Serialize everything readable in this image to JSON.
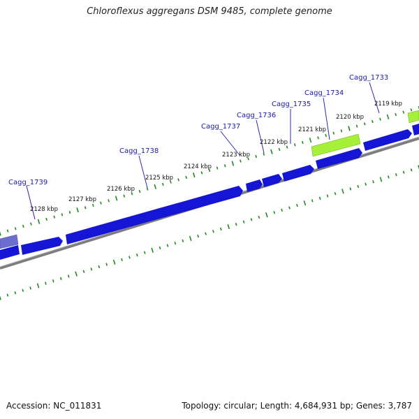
{
  "title": "Chloroflexus aggregans DSM 9485, complete genome",
  "footer": {
    "accession": "Accession: NC_011831",
    "summary": "Topology: circular; Length: 4,684,931 bp; Genes: 3,787"
  },
  "colors": {
    "gene_forward": "#1515d6",
    "gene_highlight_green": "#a6f03a",
    "gene_highlight_purple": "#6d6dd0",
    "backbone": "#8a8a8a",
    "tick": "#1f8a1f",
    "gene_label": "#1a1aa8"
  },
  "gene_labels": [
    {
      "text": "Cagg_1739"
    },
    {
      "text": "Cagg_1738"
    },
    {
      "text": "Cagg_1737"
    },
    {
      "text": "Cagg_1736"
    },
    {
      "text": "Cagg_1735"
    },
    {
      "text": "Cagg_1734"
    },
    {
      "text": "Cagg_1733"
    }
  ],
  "kbp_labels": [
    {
      "text": "2128 kbp"
    },
    {
      "text": "2127 kbp"
    },
    {
      "text": "2126 kbp"
    },
    {
      "text": "2125 kbp"
    },
    {
      "text": "2124 kbp"
    },
    {
      "text": "2123 kbp"
    },
    {
      "text": "2122 kbp"
    },
    {
      "text": "2121 kbp"
    },
    {
      "text": "2120 kbp"
    },
    {
      "text": "2119 kbp"
    }
  ]
}
